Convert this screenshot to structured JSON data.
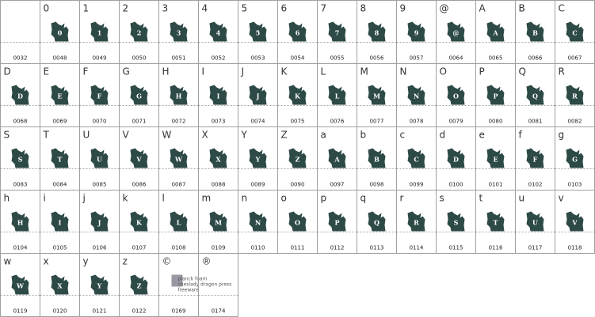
{
  "cells": [
    {
      "code": "0032"
    },
    {
      "char": "0",
      "code": "0048"
    },
    {
      "char": "1",
      "code": "0049"
    },
    {
      "char": "2",
      "code": "0050"
    },
    {
      "char": "3",
      "code": "0051"
    },
    {
      "char": "4",
      "code": "0052"
    },
    {
      "char": "5",
      "code": "0053"
    },
    {
      "char": "6",
      "code": "0054"
    },
    {
      "char": "7",
      "code": "0055"
    },
    {
      "char": "8",
      "code": "0056"
    },
    {
      "char": "9",
      "code": "0057"
    },
    {
      "char": "@",
      "code": "0064"
    },
    {
      "char": "A",
      "code": "0065"
    },
    {
      "char": "B",
      "code": "0066"
    },
    {
      "char": "C",
      "code": "0067"
    },
    {
      "char": "D",
      "code": "0068"
    },
    {
      "char": "E",
      "code": "0069"
    },
    {
      "char": "F",
      "code": "0070"
    },
    {
      "char": "G",
      "code": "0071"
    },
    {
      "char": "H",
      "code": "0072"
    },
    {
      "char": "I",
      "code": "0073"
    },
    {
      "char": "J",
      "code": "0074"
    },
    {
      "char": "K",
      "code": "0075"
    },
    {
      "char": "L",
      "code": "0076"
    },
    {
      "char": "M",
      "code": "0077"
    },
    {
      "char": "N",
      "code": "0078"
    },
    {
      "char": "O",
      "code": "0079"
    },
    {
      "char": "P",
      "code": "0080"
    },
    {
      "char": "Q",
      "code": "0081"
    },
    {
      "char": "R",
      "code": "0082"
    },
    {
      "char": "S",
      "code": "0083"
    },
    {
      "char": "T",
      "code": "0084"
    },
    {
      "char": "U",
      "code": "0085"
    },
    {
      "char": "V",
      "code": "0086"
    },
    {
      "char": "W",
      "code": "0087"
    },
    {
      "char": "X",
      "code": "0088"
    },
    {
      "char": "Y",
      "code": "0089"
    },
    {
      "char": "Z",
      "code": "0090"
    },
    {
      "char": "a",
      "code": "0097"
    },
    {
      "char": "b",
      "code": "0098"
    },
    {
      "char": "c",
      "code": "0099"
    },
    {
      "char": "d",
      "code": "0100"
    },
    {
      "char": "e",
      "code": "0101"
    },
    {
      "char": "f",
      "code": "0102"
    },
    {
      "char": "g",
      "code": "0103"
    },
    {
      "char": "h",
      "code": "0104"
    },
    {
      "char": "i",
      "code": "0105"
    },
    {
      "char": "j",
      "code": "0106"
    },
    {
      "char": "k",
      "code": "0107"
    },
    {
      "char": "l",
      "code": "0108"
    },
    {
      "char": "m",
      "code": "0109"
    },
    {
      "char": "n",
      "code": "0110"
    },
    {
      "char": "o",
      "code": "0111"
    },
    {
      "char": "p",
      "code": "0112"
    },
    {
      "char": "q",
      "code": "0113"
    },
    {
      "char": "r",
      "code": "0114"
    },
    {
      "char": "s",
      "code": "0115"
    },
    {
      "char": "t",
      "code": "0116"
    },
    {
      "char": "u",
      "code": "0117"
    },
    {
      "char": "v",
      "code": "0118"
    },
    {
      "char": "w",
      "code": "0119"
    },
    {
      "char": "x",
      "code": "0120"
    },
    {
      "char": "y",
      "code": "0121"
    },
    {
      "char": "z",
      "code": "0122"
    },
    {
      "char": "©",
      "code": "0169",
      "glyph_text": [
        "planck foam",
        "cheslady dragon press",
        "freeware"
      ]
    },
    {
      "char": "®",
      "code": "0174"
    }
  ]
}
